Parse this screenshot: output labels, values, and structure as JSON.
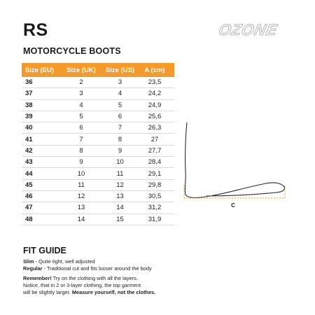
{
  "header": {
    "title": "RS",
    "subtitle": "MOTORCYCLE BOOTS",
    "logo_text": "OZONE"
  },
  "table": {
    "columns": [
      "Size (EU)",
      "Size (UK)",
      "Size (US)",
      "A (cm)"
    ],
    "rows": [
      [
        "36",
        "2",
        "3",
        "23,5"
      ],
      [
        "37",
        "3",
        "4",
        "24,2"
      ],
      [
        "38",
        "4",
        "5",
        "24,9"
      ],
      [
        "39",
        "5",
        "6",
        "25,6"
      ],
      [
        "40",
        "6",
        "7",
        "26,3"
      ],
      [
        "41",
        "7",
        "8",
        "27"
      ],
      [
        "42",
        "8",
        "9",
        "27,7"
      ],
      [
        "43",
        "9",
        "10",
        "28,4"
      ],
      [
        "44",
        "10",
        "11",
        "29,1"
      ],
      [
        "45",
        "11",
        "12",
        "29,8"
      ],
      [
        "46",
        "12",
        "13",
        "30,5"
      ],
      [
        "47",
        "13",
        "14",
        "31,2"
      ],
      [
        "48",
        "14",
        "15",
        "31,9"
      ]
    ]
  },
  "diagram": {
    "measure_label": "C",
    "accent_color": "#f39a2a"
  },
  "fit_guide": {
    "title": "FIT GUIDE",
    "slim_label": "Slim",
    "slim_text": " - Quite tight, well adjusted",
    "regular_label": "Regular",
    "regular_text": " -  Traditional cut and fits looser around the body",
    "remember_label": "Remember!",
    "remember_text": " Try on the clothing with all the layers.",
    "notice_text": "Notice, that in 2 or 3-layer clothing, the top garment",
    "larger_text": "will be slightly larger. ",
    "measure_text": "Measure yourself, not the clothes."
  }
}
